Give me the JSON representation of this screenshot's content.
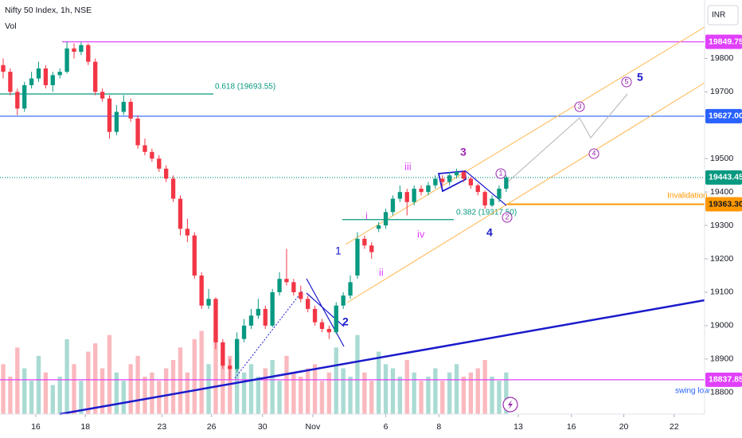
{
  "chart_data": {
    "type": "candlestick",
    "title": "Nifty 50 Index, 1h, NSE",
    "volume_label": "Vol",
    "currency": "INR",
    "up_color": "#089981",
    "down_color": "#f23645",
    "ylim": [
      18735,
      19975
    ],
    "yticks": [
      18800,
      18900,
      19000,
      19100,
      19200,
      19300,
      19400,
      19500,
      19700,
      19800
    ],
    "xlim": [
      -0.45,
      99
    ],
    "xticks": [
      {
        "value": 4.6,
        "label": "16"
      },
      {
        "value": 11.6,
        "label": "18"
      },
      {
        "value": 22.4,
        "label": "23"
      },
      {
        "value": 29.4,
        "label": "26"
      },
      {
        "value": 36.6,
        "label": "30"
      },
      {
        "value": 43.7,
        "label": "Nov"
      },
      {
        "value": 54,
        "label": "6"
      },
      {
        "value": 61.5,
        "label": "8"
      },
      {
        "value": 72.7,
        "label": "13"
      },
      {
        "value": 80.2,
        "label": "16"
      },
      {
        "value": 87.6,
        "label": "20"
      },
      {
        "value": 94.7,
        "label": "22"
      }
    ],
    "ohlc": [
      [
        19780,
        19800,
        19740,
        19760
      ],
      [
        19760,
        19770,
        19690,
        19700
      ],
      [
        19700,
        19710,
        19630,
        19650
      ],
      [
        19650,
        19730,
        19640,
        19720
      ],
      [
        19720,
        19760,
        19710,
        19740
      ],
      [
        19740,
        19790,
        19730,
        19770
      ],
      [
        19770,
        19780,
        19710,
        19720
      ],
      [
        19720,
        19760,
        19700,
        19750
      ],
      [
        19750,
        19770,
        19740,
        19760
      ],
      [
        19760,
        19849.75,
        19755,
        19830
      ],
      [
        19830,
        19845,
        19800,
        19820
      ],
      [
        19820,
        19848,
        19810,
        19840
      ],
      [
        19840,
        19845,
        19780,
        19790
      ],
      [
        19790,
        19800,
        19690,
        19700
      ],
      [
        19700,
        19710,
        19670,
        19680
      ],
      [
        19680,
        19690,
        19560,
        19580
      ],
      [
        19580,
        19660,
        19570,
        19640
      ],
      [
        19640,
        19690,
        19630,
        19670
      ],
      [
        19670,
        19680,
        19610,
        19620
      ],
      [
        19620,
        19630,
        19530,
        19540
      ],
      [
        19540,
        19560,
        19510,
        19520
      ],
      [
        19520,
        19530,
        19490,
        19500
      ],
      [
        19500,
        19510,
        19460,
        19470
      ],
      [
        19470,
        19480,
        19430,
        19440
      ],
      [
        19440,
        19450,
        19370,
        19380
      ],
      [
        19380,
        19390,
        19270,
        19290
      ],
      [
        19290,
        19320,
        19250,
        19270
      ],
      [
        19270,
        19280,
        19140,
        19150
      ],
      [
        19150,
        19160,
        19050,
        19060
      ],
      [
        19060,
        19110,
        19050,
        19080
      ],
      [
        19080,
        19085,
        18930,
        18950
      ],
      [
        18950,
        18960,
        18870,
        18880
      ],
      [
        18880,
        18900,
        18837.85,
        18870
      ],
      [
        18870,
        18980,
        18860,
        18960
      ],
      [
        18960,
        19020,
        18950,
        19000
      ],
      [
        19000,
        19050,
        18990,
        19030
      ],
      [
        19030,
        19080,
        19020,
        19050
      ],
      [
        19050,
        19060,
        18990,
        19000
      ],
      [
        19000,
        19110,
        18995,
        19100
      ],
      [
        19100,
        19160,
        19090,
        19140
      ],
      [
        19140,
        19230,
        19120,
        19130
      ],
      [
        19130,
        19140,
        19090,
        19100
      ],
      [
        19100,
        19120,
        19070,
        19080
      ],
      [
        19080,
        19090,
        19040,
        19050
      ],
      [
        19050,
        19060,
        19000,
        19010
      ],
      [
        19010,
        19020,
        18980,
        18990
      ],
      [
        18990,
        19000,
        18960,
        18980
      ],
      [
        18980,
        19070,
        18975,
        19060
      ],
      [
        19060,
        19100,
        19050,
        19090
      ],
      [
        19090,
        19150,
        19080,
        19130
      ],
      [
        19150,
        19280,
        19140,
        19260
      ],
      [
        19260,
        19270,
        19230,
        19240
      ],
      [
        19240,
        19250,
        19200,
        19220
      ],
      [
        19290,
        19310,
        19280,
        19300
      ],
      [
        19300,
        19350,
        19290,
        19340
      ],
      [
        19340,
        19390,
        19330,
        19380
      ],
      [
        19380,
        19420,
        19370,
        19400
      ],
      [
        19400,
        19410,
        19330,
        19370
      ],
      [
        19370,
        19420,
        19360,
        19410
      ],
      [
        19410,
        19420,
        19390,
        19400
      ],
      [
        19400,
        19430,
        19390,
        19420
      ],
      [
        19420,
        19450,
        19410,
        19440
      ],
      [
        19440,
        19450,
        19420,
        19430
      ],
      [
        19430,
        19460,
        19420,
        19450
      ],
      [
        19450,
        19470,
        19440,
        19460
      ],
      [
        19460,
        19465,
        19430,
        19440
      ],
      [
        19440,
        19445,
        19410,
        19420
      ],
      [
        19420,
        19425,
        19390,
        19400
      ],
      [
        19400,
        19405,
        19350,
        19360
      ],
      [
        19360,
        19390,
        19355,
        19380
      ],
      [
        19380,
        19420,
        19370,
        19410
      ],
      [
        19410,
        19450,
        19400,
        19443.45
      ]
    ],
    "volume": [
      60,
      45,
      80,
      55,
      40,
      70,
      50,
      35,
      45,
      90,
      60,
      40,
      75,
      85,
      55,
      95,
      50,
      40,
      60,
      70,
      45,
      50,
      40,
      55,
      65,
      80,
      50,
      90,
      100,
      60,
      110,
      85,
      70,
      75,
      50,
      60,
      45,
      55,
      65,
      40,
      70,
      50,
      45,
      55,
      60,
      40,
      50,
      80,
      55,
      45,
      95,
      50,
      40,
      75,
      60,
      55,
      45,
      65,
      50,
      40,
      45,
      55,
      40,
      50,
      60,
      45,
      50,
      55,
      65,
      45,
      40,
      50
    ],
    "levels": [
      {
        "price": 19849.75,
        "color": "#e040fb"
      },
      {
        "price": {
          "value": 19627,
          "label": "19627.00"
        },
        "color": "#2962ff"
      },
      {
        "price": 19443.45,
        "color": "#089981"
      },
      {
        "price": {
          "value": 19363.3,
          "label": "19363.30"
        },
        "color": "#ff9800"
      },
      {
        "price": 18837.85,
        "color": "#e040fb"
      }
    ],
    "fib": [
      {
        "label": "0.618 (19693.55)",
        "price": 19693.55,
        "color": "#089981"
      },
      {
        "label": "0.382 (19317.50)",
        "price": 19317.5,
        "color": "#089981"
      }
    ],
    "annotations": [
      "Invalidation",
      "swing low",
      "i",
      "ii",
      "iii",
      "iv",
      "1",
      "2",
      "3",
      "4",
      "5",
      "1",
      "2",
      "3",
      "4",
      "5"
    ]
  }
}
